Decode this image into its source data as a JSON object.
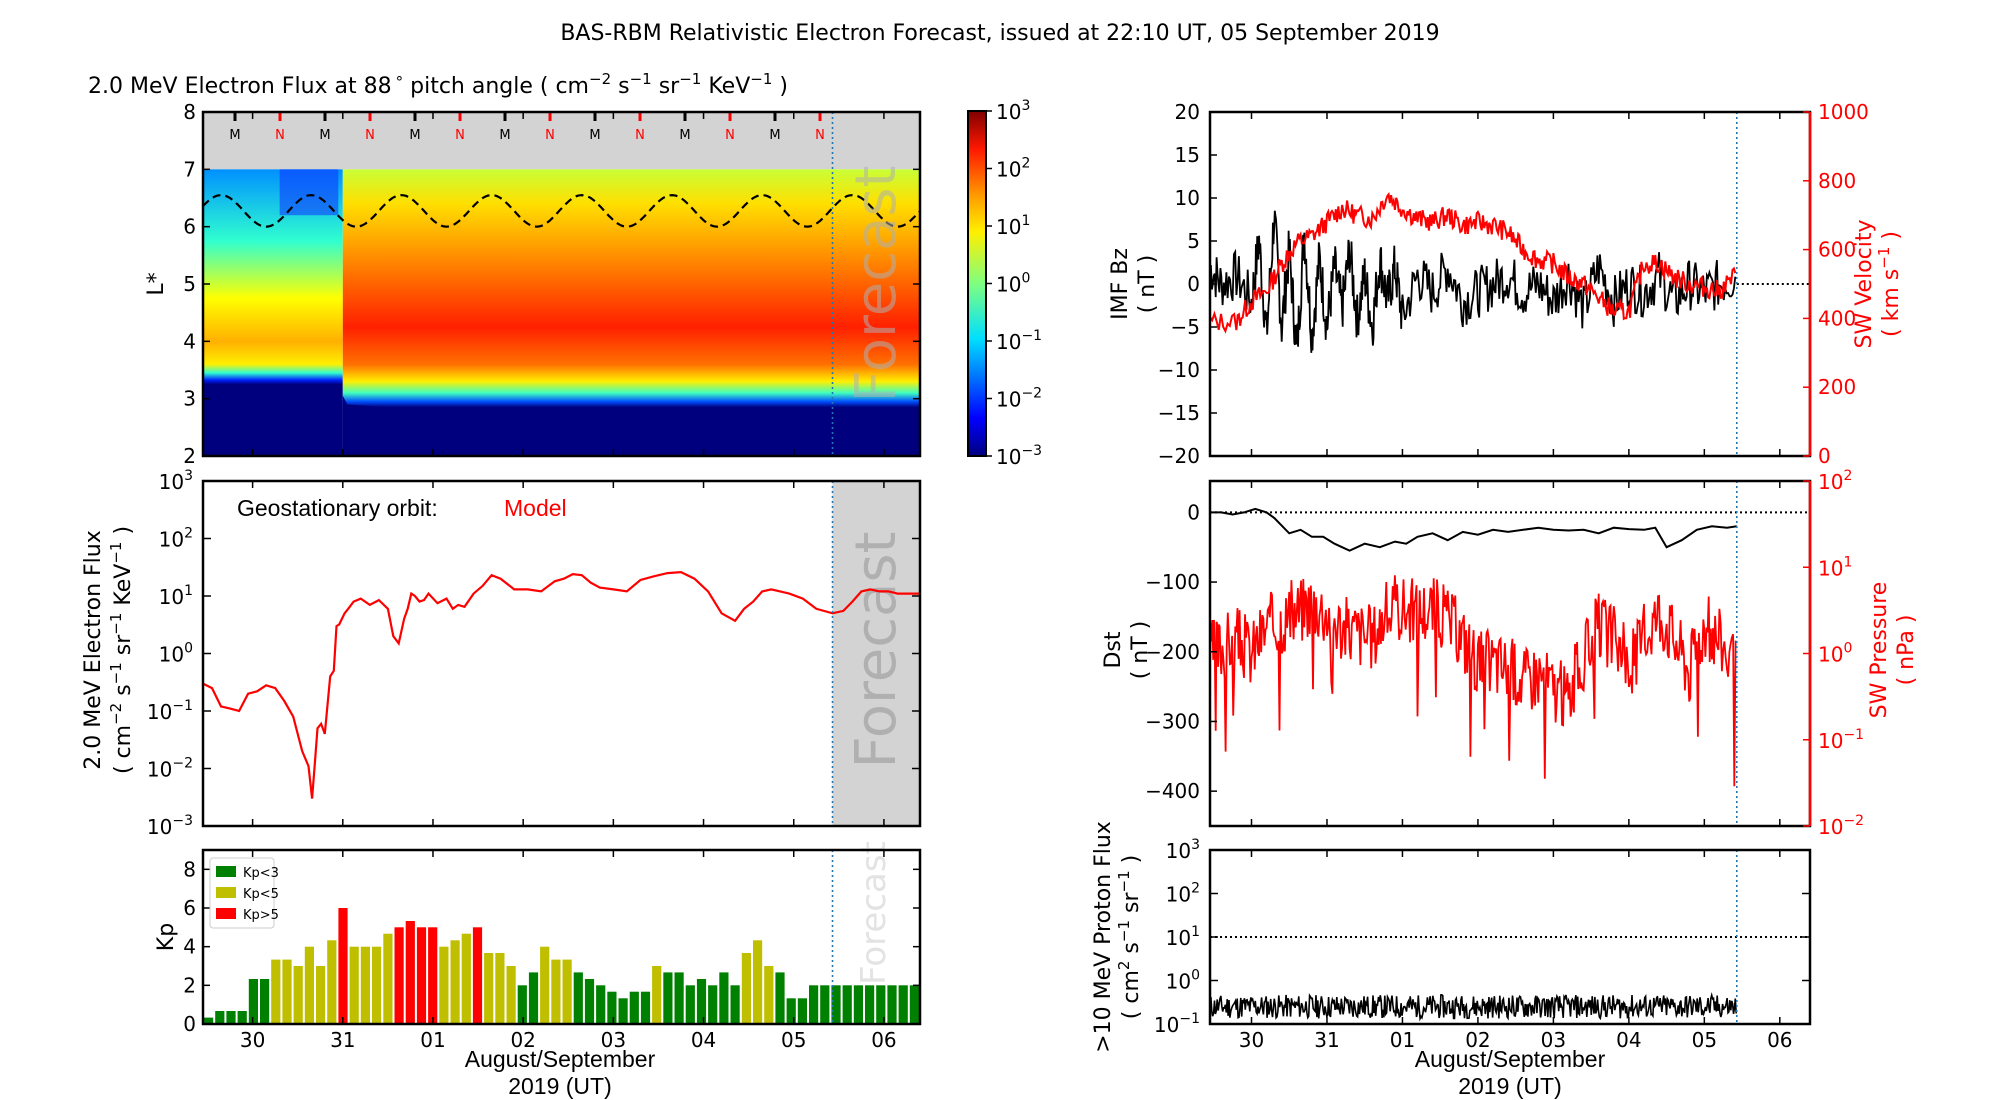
{
  "title": "BAS-RBM Relativistic Electron Forecast, issued at 22:10 UT, 05 September 2019",
  "x_axis": {
    "tick_labels": [
      "30",
      "31",
      "01",
      "02",
      "03",
      "04",
      "05",
      "06"
    ],
    "tick_days": [
      30,
      31,
      32,
      33,
      34,
      35,
      36,
      37
    ],
    "range_days": [
      29.45,
      37.4
    ],
    "forecast_start_day": 36.43,
    "label_line1": "August/September",
    "label_line2": "2019 (UT)"
  },
  "colors": {
    "red": "#ff0000",
    "black": "#000000",
    "forecast_grey": "#d3d3d3",
    "forecast_line": "#1f77b4",
    "kp_green": "#008000",
    "kp_yellow": "#bfbf00",
    "kp_red": "#ff0000"
  },
  "chart_data": [
    {
      "id": "flux-heatmap",
      "type": "heatmap",
      "title": "2.0 MeV Electron Flux at 88° pitch angle ( cm^-2 s^-1 sr^-1 KeV^-1 )",
      "title_parts": {
        "pre": "2.0 MeV Electron Flux at 88",
        "deg": "°",
        "mid": " pitch angle ( cm",
        "e1": "−2",
        "s": " s",
        "e2": "−1",
        "sr": " sr",
        "e3": "−1",
        "kev": " KeV",
        "e4": "−1",
        "post": " )"
      },
      "ylabel": "L*",
      "ylim": [
        2,
        8
      ],
      "yticks": [
        2,
        3,
        4,
        5,
        6,
        7,
        8
      ],
      "orbit_markers": [
        "M",
        "N",
        "M",
        "N",
        "M",
        "N",
        "M",
        "N",
        "M",
        "N",
        "M",
        "N",
        "M",
        "N"
      ],
      "orbit_marker_colors": [
        "#000000",
        "#ff0000"
      ],
      "colorbar": {
        "scale": "log",
        "range": [
          0.001,
          1000
        ],
        "tick_labels": [
          {
            "b": "10",
            "e": "3"
          },
          {
            "b": "10",
            "e": "2"
          },
          {
            "b": "10",
            "e": "1"
          },
          {
            "b": "10",
            "e": "0"
          },
          {
            "b": "10",
            "e": "−1"
          },
          {
            "b": "10",
            "e": "−2"
          },
          {
            "b": "10",
            "e": "−3"
          }
        ]
      },
      "geo_orbit_L_range": [
        6.0,
        6.55
      ],
      "forecast_label": "Forecast"
    },
    {
      "id": "geo-flux",
      "type": "line",
      "ylabel_line1": "2.0 MeV Electron Flux",
      "ylabel_line2": "( cm^-2 s^-1 sr^-1 KeV^-1 )",
      "yscale": "log",
      "ylim": [
        0.001,
        1000
      ],
      "ytick_labels": [
        {
          "b": "10",
          "e": "3"
        },
        {
          "b": "10",
          "e": "2"
        },
        {
          "b": "10",
          "e": "1"
        },
        {
          "b": "10",
          "e": "0"
        },
        {
          "b": "10",
          "e": "−1"
        },
        {
          "b": "10",
          "e": "−2"
        },
        {
          "b": "10",
          "e": "−3"
        }
      ],
      "annotation": "Geostationary orbit:",
      "annotation_series": "Model",
      "forecast_label": "Forecast",
      "series": [
        {
          "name": "Model",
          "color": "#ff0000",
          "x": [
            29.45,
            29.55,
            29.65,
            29.75,
            29.85,
            29.95,
            30.05,
            30.15,
            30.25,
            30.35,
            30.45,
            30.55,
            30.62,
            30.66,
            30.69,
            30.72,
            30.76,
            30.8,
            30.86,
            30.9,
            30.93,
            30.96,
            30.99,
            31.02,
            31.06,
            31.12,
            31.2,
            31.3,
            31.4,
            31.5,
            31.56,
            31.62,
            31.68,
            31.72,
            31.76,
            31.8,
            31.85,
            31.9,
            31.95,
            32.05,
            32.15,
            32.22,
            32.28,
            32.35,
            32.45,
            32.55,
            32.65,
            32.75,
            32.9,
            33.05,
            33.2,
            33.35,
            33.45,
            33.55,
            33.65,
            33.75,
            33.85,
            34.0,
            34.15,
            34.3,
            34.45,
            34.6,
            34.75,
            34.9,
            35.05,
            35.2,
            35.35,
            35.45,
            35.55,
            35.65,
            35.75,
            35.85,
            35.95,
            36.1,
            36.25,
            36.43,
            36.55,
            36.65,
            36.75,
            36.85,
            36.95,
            37.05,
            37.15,
            37.25,
            37.4
          ],
          "y": [
            0.3,
            0.25,
            0.12,
            0.11,
            0.1,
            0.2,
            0.22,
            0.28,
            0.25,
            0.15,
            0.08,
            0.02,
            0.011,
            0.003,
            0.012,
            0.05,
            0.06,
            0.04,
            0.4,
            0.5,
            3,
            3.2,
            4,
            5,
            6,
            8,
            9,
            7,
            8.5,
            6,
            2,
            1.5,
            4,
            6,
            11,
            10,
            8,
            8.5,
            11,
            7.5,
            9,
            6,
            7,
            6.5,
            11,
            15,
            23,
            20,
            13,
            13,
            12,
            18,
            20,
            24,
            23,
            17,
            14,
            13,
            12,
            19,
            22,
            25,
            26,
            20,
            12,
            5,
            3.7,
            6,
            8,
            12,
            13,
            12,
            11,
            9,
            6,
            5,
            5.5,
            8,
            12,
            13,
            12,
            12,
            11,
            11,
            11
          ]
        }
      ]
    },
    {
      "id": "kp",
      "type": "bar",
      "ylabel": "Kp",
      "ylim": [
        0,
        9
      ],
      "yticks": [
        0,
        2,
        4,
        6,
        8
      ],
      "bar_interval_hours": 3,
      "legend": [
        {
          "label": "Kp<3",
          "color": "#008000"
        },
        {
          "label": "Kp<5",
          "color": "#bfbf00"
        },
        {
          "label": "Kp>5",
          "color": "#ff0000"
        }
      ],
      "legend_position": "top-left",
      "forecast_label": "Forecast",
      "values": [
        0.33,
        0.67,
        0.67,
        0.67,
        2.33,
        2.33,
        3.33,
        3.33,
        3,
        4,
        3,
        4.33,
        6,
        4,
        4,
        4,
        4.67,
        5,
        5.33,
        5,
        5,
        4,
        4.33,
        4.67,
        5,
        3.67,
        3.67,
        3,
        2,
        2.67,
        4,
        3.33,
        3.33,
        2.67,
        2.33,
        2,
        1.67,
        1.33,
        1.67,
        1.67,
        3,
        2.67,
        2.67,
        2,
        2.33,
        2,
        2.67,
        2,
        3.67,
        4.33,
        3,
        2.67,
        1.33,
        1.33,
        2,
        2,
        2,
        2,
        2,
        2,
        2,
        2,
        2,
        2
      ],
      "categories_color": [
        "g",
        "g",
        "g",
        "g",
        "g",
        "g",
        "y",
        "y",
        "y",
        "y",
        "y",
        "y",
        "r",
        "y",
        "y",
        "y",
        "y",
        "r",
        "r",
        "r",
        "r",
        "y",
        "y",
        "y",
        "r",
        "y",
        "y",
        "y",
        "g",
        "g",
        "y",
        "y",
        "y",
        "g",
        "g",
        "g",
        "g",
        "g",
        "g",
        "g",
        "y",
        "g",
        "g",
        "g",
        "g",
        "g",
        "g",
        "g",
        "y",
        "y",
        "y",
        "g",
        "g",
        "g",
        "g",
        "g",
        "g",
        "g",
        "g",
        "g",
        "g",
        "g",
        "g",
        "g"
      ]
    },
    {
      "id": "imf-sw",
      "type": "line",
      "ylabel_line1": "IMF Bz",
      "ylabel_line2": "( nT )",
      "ylim": [
        -20,
        20
      ],
      "yticks": [
        -20,
        -15,
        -10,
        -5,
        0,
        5,
        10,
        15,
        20
      ],
      "ytick_labels": [
        "−20",
        "−15",
        "−10",
        "−5",
        "0",
        "5",
        "10",
        "15",
        "20"
      ],
      "y2label_line1": "SW Velocity",
      "y2label_line2": "( km s^-1 )",
      "y2lim": [
        0,
        1000
      ],
      "y2ticks": [
        0,
        200,
        400,
        600,
        800,
        1000
      ],
      "series": [
        {
          "name": "IMF Bz",
          "color": "#000000",
          "axis": "left",
          "x": [
            29.45,
            29.6,
            29.8,
            30.0,
            30.1,
            30.2,
            30.3,
            30.4,
            30.5,
            30.6,
            30.7,
            30.8,
            30.9,
            31.0,
            31.1,
            31.2,
            31.3,
            31.4,
            31.5,
            31.6,
            31.7,
            31.8,
            31.9,
            32.0,
            32.2,
            32.4,
            32.6,
            32.8,
            33.0,
            33.2,
            33.4,
            33.6,
            33.8,
            34.0,
            34.2,
            34.4,
            34.6,
            34.8,
            35.0,
            35.2,
            35.4,
            35.6,
            35.8,
            36.0,
            36.2,
            36.43
          ],
          "y": [
            2,
            0,
            1,
            -2,
            5,
            -6,
            8,
            -5,
            4,
            -8,
            6,
            -6,
            3,
            -5,
            2,
            -3,
            4,
            -4,
            1,
            -5,
            3,
            -2,
            2,
            -4,
            1,
            -1,
            2,
            -2,
            -1,
            0,
            1,
            -1,
            0,
            -2,
            1,
            -3,
            2,
            -2,
            0,
            -1,
            1,
            -2,
            0,
            -1,
            0,
            1
          ]
        },
        {
          "name": "SW Velocity",
          "color": "#ff0000",
          "axis": "right",
          "x": [
            29.45,
            29.8,
            30.0,
            30.2,
            30.4,
            30.6,
            30.8,
            31.0,
            31.2,
            31.4,
            31.6,
            31.8,
            32.0,
            32.2,
            32.4,
            32.6,
            32.8,
            33.0,
            33.2,
            33.4,
            33.6,
            33.8,
            34.0,
            34.2,
            34.4,
            34.6,
            34.8,
            35.0,
            35.2,
            35.4,
            35.6,
            35.8,
            36.0,
            36.2,
            36.43
          ],
          "y": [
            390,
            390,
            450,
            480,
            560,
            620,
            640,
            680,
            720,
            700,
            690,
            760,
            720,
            690,
            680,
            700,
            670,
            680,
            670,
            650,
            600,
            570,
            560,
            520,
            500,
            460,
            420,
            420,
            560,
            560,
            520,
            500,
            490,
            480,
            530
          ]
        }
      ],
      "reference_line": {
        "axis": "left",
        "value": 0,
        "style": "dotted"
      }
    },
    {
      "id": "dst-swp",
      "type": "line",
      "ylabel_line1": "Dst",
      "ylabel_line2": "( nT )",
      "ylim": [
        -450,
        45
      ],
      "yticks": [
        0,
        -100,
        -200,
        -300,
        -400
      ],
      "ytick_labels": [
        "0",
        "−100",
        "−200",
        "−300",
        "−400"
      ],
      "y2label_line1": "SW Pressure",
      "y2label_line2": "( nPa )",
      "y2scale": "log",
      "y2lim": [
        0.01,
        100
      ],
      "y2tick_labels": [
        {
          "b": "10",
          "e": "2"
        },
        {
          "b": "10",
          "e": "1"
        },
        {
          "b": "10",
          "e": "0"
        },
        {
          "b": "10",
          "e": "−1"
        },
        {
          "b": "10",
          "e": "−2"
        }
      ],
      "series": [
        {
          "name": "Dst",
          "color": "#000000",
          "axis": "left",
          "x": [
            29.45,
            29.6,
            29.75,
            29.9,
            30.05,
            30.2,
            30.3,
            30.5,
            30.65,
            30.8,
            30.95,
            31.1,
            31.3,
            31.5,
            31.7,
            31.9,
            32.05,
            32.2,
            32.4,
            32.6,
            32.8,
            33.0,
            33.2,
            33.4,
            33.6,
            33.8,
            34.0,
            34.2,
            34.4,
            34.6,
            34.8,
            35.0,
            35.2,
            35.35,
            35.5,
            35.7,
            35.9,
            36.1,
            36.3,
            36.43
          ],
          "y": [
            0,
            0,
            -3,
            0,
            5,
            0,
            -8,
            -30,
            -25,
            -35,
            -35,
            -45,
            -55,
            -45,
            -50,
            -42,
            -45,
            -35,
            -30,
            -40,
            -28,
            -32,
            -25,
            -28,
            -25,
            -22,
            -25,
            -26,
            -25,
            -30,
            -22,
            -24,
            -25,
            -22,
            -50,
            -40,
            -25,
            -20,
            -22,
            -20
          ]
        },
        {
          "name": "SW Pressure",
          "color": "#ff0000",
          "axis": "right",
          "x": [
            29.45,
            29.6,
            29.8,
            30.0,
            30.2,
            30.4,
            30.6,
            30.8,
            31.0,
            31.2,
            31.4,
            31.6,
            31.8,
            32.0,
            32.2,
            32.4,
            32.6,
            32.8,
            33.0,
            33.2,
            33.4,
            33.6,
            33.8,
            34.0,
            34.2,
            34.4,
            34.6,
            34.8,
            35.0,
            35.2,
            35.4,
            35.6,
            35.8,
            36.0,
            36.2,
            36.43
          ],
          "y": [
            1,
            1.2,
            1.5,
            1,
            2,
            2.5,
            3,
            4,
            3,
            2,
            1.8,
            1.5,
            3,
            3.5,
            3,
            3.5,
            2.5,
            1.5,
            0.8,
            0.8,
            0.7,
            0.5,
            0.6,
            0.4,
            0.3,
            0.8,
            2,
            1.5,
            0.6,
            1.5,
            3,
            1.5,
            0.6,
            2,
            1.5,
            0.5
          ]
        }
      ],
      "reference_line": {
        "axis": "left",
        "value": 0,
        "style": "dotted"
      }
    },
    {
      "id": "proton-flux",
      "type": "line",
      "ylabel_line1": ">10 MeV Proton Flux",
      "ylabel_line2": "( cm^2 s^-1 sr^-1 )",
      "yscale": "log",
      "ylim": [
        0.1,
        1000
      ],
      "ytick_labels": [
        {
          "b": "10",
          "e": "3"
        },
        {
          "b": "10",
          "e": "2"
        },
        {
          "b": "10",
          "e": "1"
        },
        {
          "b": "10",
          "e": "0"
        },
        {
          "b": "10",
          "e": "−1"
        }
      ],
      "series": [
        {
          "name": ">10 MeV Proton Flux",
          "color": "#000000",
          "x_range": [
            29.45,
            36.43
          ],
          "typical": 0.25,
          "min": 0.12,
          "max": 0.9
        }
      ],
      "reference_line": {
        "value": 10,
        "style": "dotted"
      }
    }
  ]
}
